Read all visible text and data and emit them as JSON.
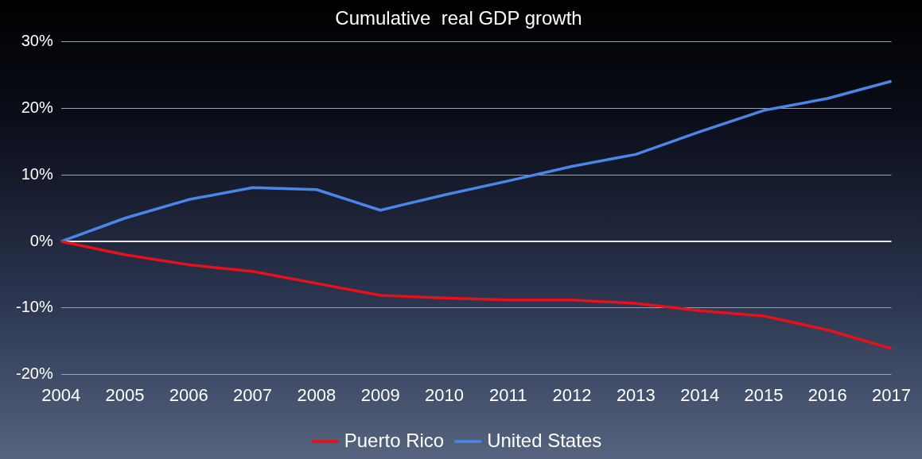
{
  "chart_data": {
    "type": "line",
    "title": "Cumulative  real GDP growth",
    "categories": [
      "2004",
      "2005",
      "2006",
      "2007",
      "2008",
      "2009",
      "2010",
      "2011",
      "2012",
      "2013",
      "2014",
      "2015",
      "2016",
      "2017"
    ],
    "series": [
      {
        "name": "Puerto Rico",
        "color": "#e8101a",
        "values": [
          0,
          -2.0,
          -3.5,
          -4.5,
          -6.3,
          -8.1,
          -8.5,
          -8.8,
          -8.8,
          -9.3,
          -10.4,
          -11.2,
          -13.3,
          -16.1
        ]
      },
      {
        "name": "United States",
        "color": "#4a86e8",
        "values": [
          0,
          3.5,
          6.3,
          8.1,
          7.8,
          4.7,
          7.0,
          9.1,
          11.3,
          13.1,
          16.5,
          19.7,
          21.5,
          24.1
        ]
      }
    ],
    "ylim": [
      -20,
      30
    ],
    "yticks": [
      {
        "value": -20,
        "label": "-20%"
      },
      {
        "value": -10,
        "label": "-10%"
      },
      {
        "value": 0,
        "label": "0%"
      },
      {
        "value": 10,
        "label": "10%"
      },
      {
        "value": 20,
        "label": "20%"
      },
      {
        "value": 30,
        "label": "30%"
      }
    ],
    "grid": "y",
    "legend": "bottom",
    "marker": "none",
    "line_style": "solid"
  }
}
